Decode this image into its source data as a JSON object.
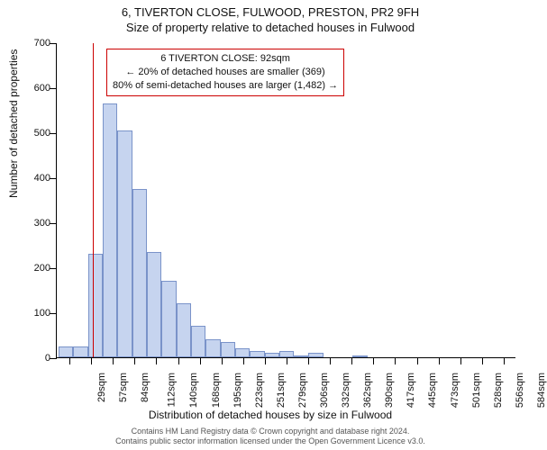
{
  "titles": {
    "main": "6, TIVERTON CLOSE, FULWOOD, PRESTON, PR2 9FH",
    "sub": "Size of property relative to detached houses in Fulwood"
  },
  "axes": {
    "ylabel": "Number of detached properties",
    "xlabel": "Distribution of detached houses by size in Fulwood",
    "ylim_max": 700,
    "ytick_step": 100,
    "yticks": [
      0,
      100,
      200,
      300,
      400,
      500,
      600,
      700
    ]
  },
  "chart": {
    "type": "histogram",
    "bar_fill": "#c6d4ef",
    "bar_stroke": "#7a93c9",
    "background": "#ffffff",
    "axis_color": "#000000",
    "marker_color": "#cc0000",
    "xtick_labels": [
      "29sqm",
      "57sqm",
      "84sqm",
      "112sqm",
      "140sqm",
      "168sqm",
      "195sqm",
      "223sqm",
      "251sqm",
      "279sqm",
      "306sqm",
      "332sqm",
      "362sqm",
      "390sqm",
      "417sqm",
      "445sqm",
      "473sqm",
      "501sqm",
      "528sqm",
      "556sqm",
      "584sqm"
    ],
    "values": [
      25,
      25,
      230,
      565,
      505,
      375,
      235,
      170,
      120,
      70,
      40,
      35,
      20,
      15,
      10,
      15,
      5,
      10,
      0,
      0,
      5,
      0,
      0,
      0,
      0,
      0,
      0,
      0,
      0,
      0,
      0
    ],
    "marker_bin_index": 2.35
  },
  "annotation": {
    "line1": "6 TIVERTON CLOSE: 92sqm",
    "line2": "← 20% of detached houses are smaller (369)",
    "line3": "80% of semi-detached houses are larger (1,482) →"
  },
  "footer": {
    "line1": "Contains HM Land Registry data © Crown copyright and database right 2024.",
    "line2": "Contains public sector information licensed under the Open Government Licence v3.0."
  }
}
